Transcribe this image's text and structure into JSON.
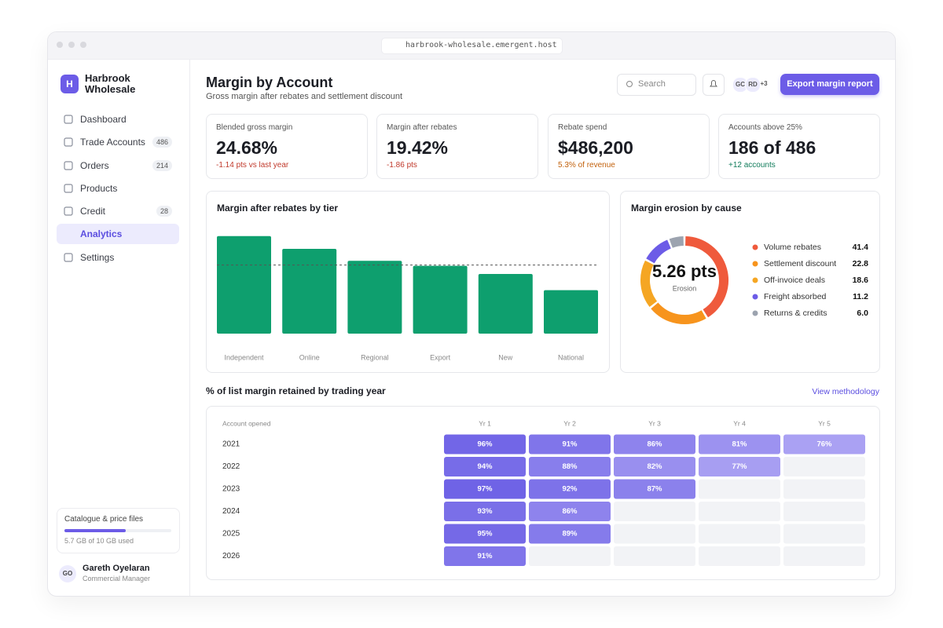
{
  "browser": {
    "url": "harbrook-wholesale.emergent.host"
  },
  "sidebar": {
    "brand": {
      "initial": "H",
      "name": "Harbrook Wholesale"
    },
    "nav": [
      {
        "label": "Dashboard"
      },
      {
        "label": "Trade Accounts",
        "badge": 486
      },
      {
        "label": "Orders",
        "badge": 214
      },
      {
        "label": "Products"
      },
      {
        "label": "Credit",
        "badge": 28
      },
      {
        "label": "Analytics",
        "active": true
      },
      {
        "label": "Settings"
      }
    ],
    "storage": {
      "title": "Catalogue & price files",
      "usage": "5.7 GB of 10 GB used",
      "used": 5.7,
      "capacity": 10
    },
    "user": {
      "initials": "GO",
      "name": "Gareth Oyelaran",
      "role": "Commercial Manager"
    }
  },
  "header": {
    "title": "Margin by Account",
    "subtitle": "Gross margin after rebates and settlement discount",
    "search": "Search",
    "avatars": [
      "GC",
      "RD",
      "+3"
    ],
    "action": "Export margin report"
  },
  "kpis": [
    {
      "label": "Blended gross margin",
      "value": "24.68%",
      "delta": "-1.14 pts vs last year",
      "tone": "negative"
    },
    {
      "label": "Margin after rebates",
      "value": "19.42%",
      "delta": "-1.86 pts",
      "tone": "negative"
    },
    {
      "label": "Rebate spend",
      "value": "$486,200",
      "delta": "5.3% of revenue",
      "tone": "warning"
    },
    {
      "label": "Accounts above 25%",
      "value": "186 of 486",
      "delta": "+12 accounts",
      "tone": "positive"
    }
  ],
  "chart_data": [
    {
      "type": "bar",
      "title": "Margin after rebates by tier",
      "categories": [
        "Independent",
        "Online",
        "Regional",
        "Export",
        "New",
        "National"
      ],
      "values": [
        27.6,
        24.0,
        20.6,
        19.2,
        16.9,
        12.3
      ],
      "color": "#0e9f6e",
      "ylim": [
        0,
        30
      ],
      "reference_line": 19.42
    },
    {
      "type": "donut",
      "title": "Margin erosion by cause",
      "center_label": "5.26 pts",
      "center_caption": "Erosion",
      "categories": [
        "Volume rebates",
        "Settlement discount",
        "Off-invoice deals",
        "Freight absorbed",
        "Returns & credits"
      ],
      "values": [
        41.4,
        22.8,
        18.6,
        11.2,
        6
      ],
      "value_labels": [
        "41.4",
        "22.8",
        "18.6",
        "11.2",
        "6.0"
      ],
      "colors": [
        "#ef5a3c",
        "#f7941d",
        "#f5a623",
        "#6c5ce7",
        "#9ca3af"
      ]
    },
    {
      "type": "heatmap",
      "title": "% of list margin retained by trading year",
      "link": "View methodology",
      "row_header": "Account opened",
      "rows": [
        "2021",
        "2022",
        "2023",
        "2024",
        "2025",
        "2026"
      ],
      "columns": [
        "Yr 1",
        "Yr 2",
        "Yr 3",
        "Yr 4",
        "Yr 5"
      ],
      "values": [
        [
          96,
          91,
          86,
          81,
          76
        ],
        [
          94,
          88,
          82,
          77,
          null
        ],
        [
          97,
          92,
          87,
          null,
          null
        ],
        [
          93,
          86,
          null,
          null,
          null
        ],
        [
          95,
          89,
          null,
          null,
          null
        ],
        [
          91,
          null,
          null,
          null,
          null
        ]
      ],
      "value_labels": [
        [
          "96%",
          "91%",
          "86%",
          "81%",
          "76%"
        ],
        [
          "94%",
          "88%",
          "82%",
          "77%",
          null
        ],
        [
          "97%",
          "92%",
          "87%",
          null,
          null
        ],
        [
          "93%",
          "86%",
          null,
          null,
          null
        ],
        [
          "95%",
          "89%",
          null,
          null,
          null
        ],
        [
          "91%",
          null,
          null,
          null,
          null
        ]
      ],
      "colors": [
        "#aaa1f3",
        "#6f63e6"
      ]
    }
  ]
}
